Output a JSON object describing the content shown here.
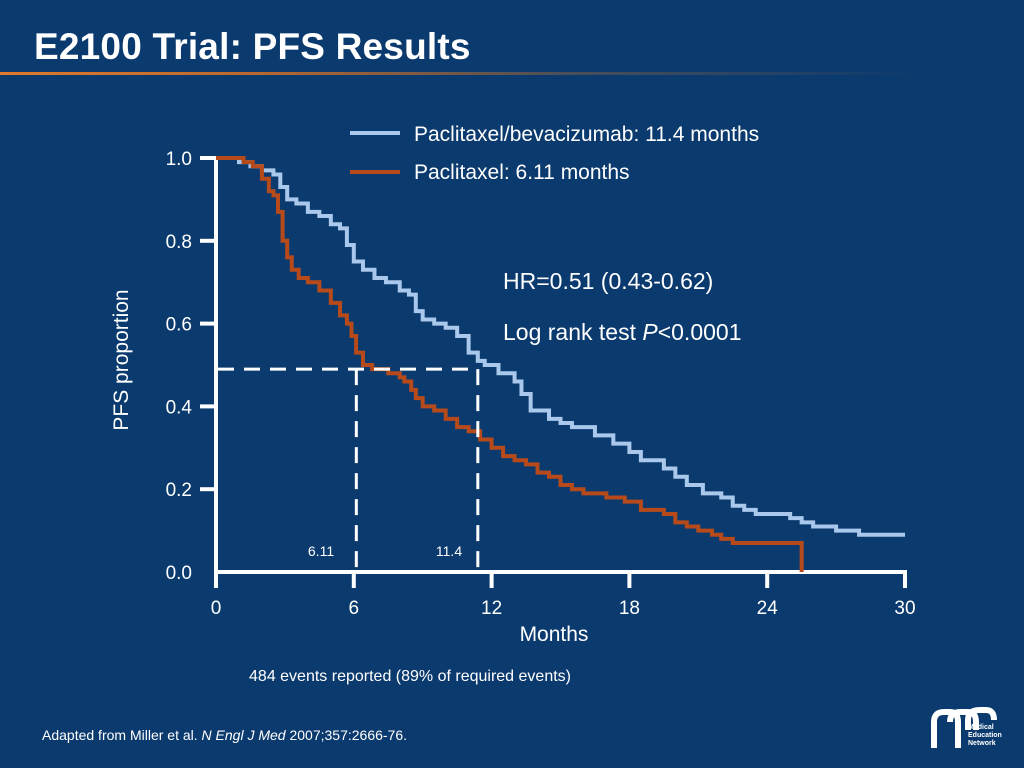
{
  "slide": {
    "title": "E2100 Trial: PFS Results",
    "footer_prefix": "Adapted from",
    "footer_authors": "Miller et al.",
    "footer_journal": "N Engl J Med",
    "footer_citation": "2007;357:2666-76.",
    "logo_lines": [
      "Medical",
      "Education",
      "Network"
    ]
  },
  "chart_data": {
    "type": "line",
    "xlabel": "Months",
    "ylabel": "PFS proportion",
    "xlim": [
      0,
      30
    ],
    "ylim": [
      0,
      1
    ],
    "x_ticks": [
      "0",
      "6",
      "12",
      "18",
      "24",
      "30"
    ],
    "y_ticks": [
      "0.0",
      "0.2",
      "0.4",
      "0.6",
      "0.8",
      "1.0"
    ],
    "grid": false,
    "legend_position": "top-right",
    "annotations": {
      "hr": "HR=0.51 (0.43-0.62)",
      "logrank_prefix": "Log rank test ",
      "logrank_p": "P",
      "logrank_value": "<0.0001",
      "median_1_label": "6.11",
      "median_2_label": "11.4",
      "events_note": "484 events reported (89% of required events)"
    },
    "medians": {
      "y": 0.49,
      "x": [
        6.11,
        11.4
      ]
    },
    "series": [
      {
        "name": "Paclitaxel/bevacizumab: 11.4 months",
        "color": "#a9c8ec",
        "points": [
          [
            0,
            1.0
          ],
          [
            0.5,
            1.0
          ],
          [
            1.0,
            0.99
          ],
          [
            1.5,
            0.98
          ],
          [
            2.0,
            0.97
          ],
          [
            2.5,
            0.96
          ],
          [
            2.8,
            0.93
          ],
          [
            3.1,
            0.9
          ],
          [
            3.5,
            0.89
          ],
          [
            4.0,
            0.87
          ],
          [
            4.5,
            0.86
          ],
          [
            5.0,
            0.84
          ],
          [
            5.4,
            0.83
          ],
          [
            5.7,
            0.79
          ],
          [
            6.0,
            0.75
          ],
          [
            6.4,
            0.73
          ],
          [
            6.9,
            0.71
          ],
          [
            7.4,
            0.7
          ],
          [
            8.0,
            0.68
          ],
          [
            8.4,
            0.67
          ],
          [
            8.7,
            0.63
          ],
          [
            9.0,
            0.61
          ],
          [
            9.5,
            0.6
          ],
          [
            10.0,
            0.59
          ],
          [
            10.5,
            0.57
          ],
          [
            11.0,
            0.53
          ],
          [
            11.4,
            0.51
          ],
          [
            11.7,
            0.5
          ],
          [
            12.3,
            0.48
          ],
          [
            13.0,
            0.46
          ],
          [
            13.3,
            0.43
          ],
          [
            13.7,
            0.39
          ],
          [
            14.5,
            0.37
          ],
          [
            15.0,
            0.36
          ],
          [
            15.5,
            0.35
          ],
          [
            16.5,
            0.33
          ],
          [
            17.3,
            0.31
          ],
          [
            18.0,
            0.29
          ],
          [
            18.5,
            0.27
          ],
          [
            19.5,
            0.25
          ],
          [
            20.0,
            0.23
          ],
          [
            20.5,
            0.21
          ],
          [
            21.2,
            0.19
          ],
          [
            22.0,
            0.18
          ],
          [
            22.5,
            0.16
          ],
          [
            23.0,
            0.15
          ],
          [
            23.5,
            0.14
          ],
          [
            25.0,
            0.13
          ],
          [
            25.5,
            0.12
          ],
          [
            26.0,
            0.11
          ],
          [
            27.0,
            0.1
          ],
          [
            28.0,
            0.09
          ],
          [
            30.0,
            0.09
          ]
        ]
      },
      {
        "name": "Paclitaxel: 6.11 months",
        "color": "#b74a1a",
        "points": [
          [
            0,
            1.0
          ],
          [
            0.7,
            1.0
          ],
          [
            1.2,
            0.99
          ],
          [
            1.6,
            0.98
          ],
          [
            2.0,
            0.95
          ],
          [
            2.3,
            0.92
          ],
          [
            2.5,
            0.91
          ],
          [
            2.7,
            0.87
          ],
          [
            2.9,
            0.8
          ],
          [
            3.1,
            0.76
          ],
          [
            3.3,
            0.73
          ],
          [
            3.6,
            0.71
          ],
          [
            4.0,
            0.7
          ],
          [
            4.5,
            0.68
          ],
          [
            5.0,
            0.65
          ],
          [
            5.4,
            0.62
          ],
          [
            5.7,
            0.6
          ],
          [
            5.9,
            0.57
          ],
          [
            6.1,
            0.53
          ],
          [
            6.4,
            0.5
          ],
          [
            6.8,
            0.49
          ],
          [
            7.5,
            0.48
          ],
          [
            8.0,
            0.47
          ],
          [
            8.2,
            0.46
          ],
          [
            8.5,
            0.44
          ],
          [
            8.7,
            0.42
          ],
          [
            9.0,
            0.4
          ],
          [
            9.5,
            0.39
          ],
          [
            10.0,
            0.37
          ],
          [
            10.5,
            0.35
          ],
          [
            11.0,
            0.34
          ],
          [
            11.5,
            0.32
          ],
          [
            12.0,
            0.3
          ],
          [
            12.5,
            0.28
          ],
          [
            13.0,
            0.27
          ],
          [
            13.5,
            0.26
          ],
          [
            14.0,
            0.24
          ],
          [
            14.5,
            0.23
          ],
          [
            15.0,
            0.21
          ],
          [
            15.5,
            0.2
          ],
          [
            16.0,
            0.19
          ],
          [
            17.0,
            0.18
          ],
          [
            17.8,
            0.17
          ],
          [
            18.5,
            0.15
          ],
          [
            19.5,
            0.14
          ],
          [
            20.0,
            0.12
          ],
          [
            20.5,
            0.11
          ],
          [
            21.0,
            0.1
          ],
          [
            21.6,
            0.09
          ],
          [
            22.0,
            0.08
          ],
          [
            22.5,
            0.07
          ],
          [
            25.5,
            0.07
          ],
          [
            25.5,
            0.0
          ]
        ]
      }
    ]
  }
}
